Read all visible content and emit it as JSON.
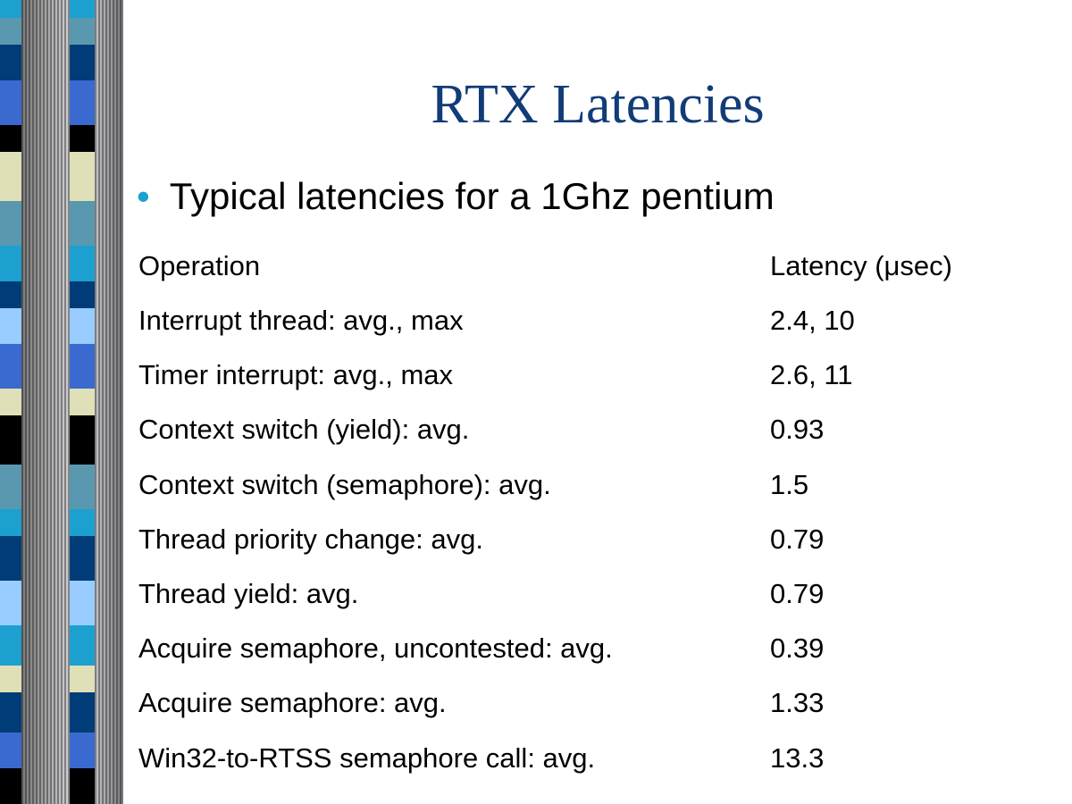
{
  "slide": {
    "title": "RTX Latencies",
    "bullet": "Typical latencies for a 1Ghz pentium",
    "table": {
      "headers": [
        "Operation",
        "Latency (μsec)"
      ],
      "rows": [
        [
          "Interrupt thread: avg., max",
          "2.4, 10"
        ],
        [
          "Timer interrupt: avg., max",
          "2.6, 11"
        ],
        [
          "Context switch (yield): avg.",
          "0.93"
        ],
        [
          "Context switch (semaphore): avg.",
          "1.5"
        ],
        [
          "Thread priority change: avg.",
          "0.79"
        ],
        [
          "Thread yield: avg.",
          "0.79"
        ],
        [
          "Acquire semaphore, uncontested: avg.",
          "0.39"
        ],
        [
          "Acquire semaphore: avg.",
          "1.33"
        ],
        [
          "Win32-to-RTSS semaphore call: avg.",
          "13.3"
        ]
      ]
    }
  },
  "colors": {
    "title": "#123c78",
    "bullet": "#1ba0d0"
  }
}
